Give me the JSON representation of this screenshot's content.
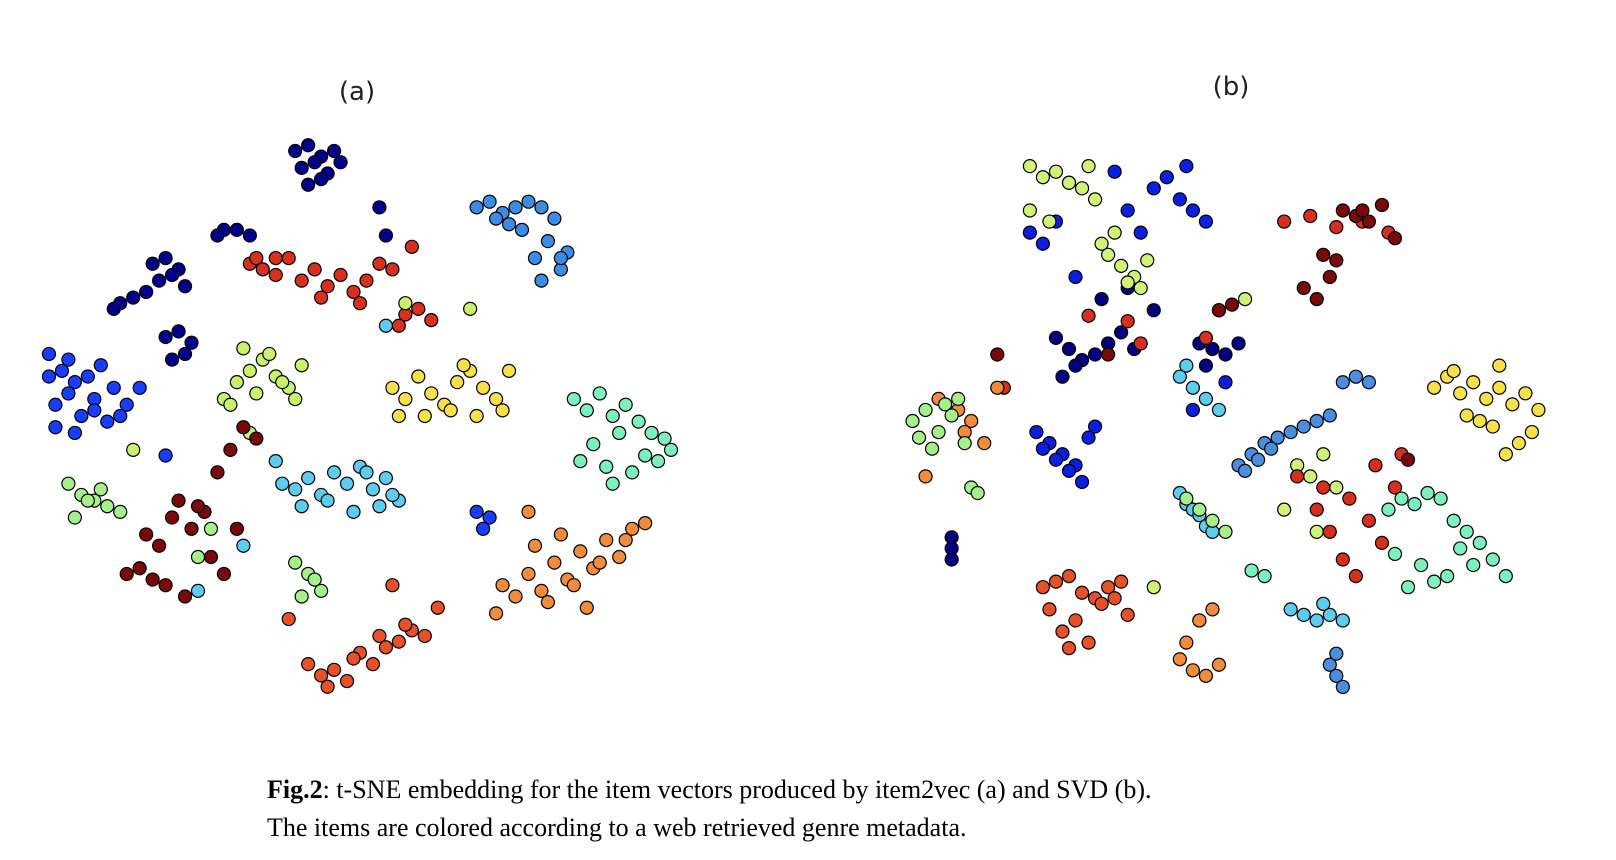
{
  "chart_data": [
    {
      "type": "scatter",
      "title": "(a)",
      "xlim": [
        0,
        100
      ],
      "ylim": [
        0,
        100
      ],
      "series": [
        {
          "color": "#00008b",
          "x": [
            40,
            42,
            44,
            46,
            41,
            43,
            45,
            47,
            44,
            42,
            18,
            20,
            22,
            19,
            21,
            23,
            20,
            22,
            24,
            21,
            23,
            15,
            13,
            17,
            12,
            29,
            31,
            33,
            28,
            54,
            53
          ],
          "y": [
            97,
            98,
            96,
            97,
            94,
            95,
            93,
            95,
            92,
            91,
            77,
            78,
            76,
            74,
            75,
            73,
            64,
            65,
            63,
            60,
            61,
            71,
            70,
            72,
            69,
            83,
            83,
            82,
            82,
            82,
            87
          ]
        },
        {
          "color": "#1a3cff",
          "x": [
            2,
            4,
            6,
            3,
            5,
            8,
            10,
            12,
            7,
            9,
            11,
            14,
            3,
            6,
            9,
            13,
            16,
            2,
            5,
            70,
            69,
            68,
            20
          ],
          "y": [
            61,
            58,
            56,
            52,
            54,
            57,
            59,
            55,
            50,
            53,
            49,
            52,
            48,
            47,
            51,
            50,
            55,
            57,
            60,
            32,
            30,
            33,
            43
          ]
        },
        {
          "color": "#3c8ce6",
          "x": [
            68,
            70,
            72,
            74,
            76,
            78,
            80,
            82,
            71,
            75,
            79,
            81,
            77,
            73,
            81,
            78
          ],
          "y": [
            87,
            88,
            86,
            87,
            88,
            87,
            85,
            79,
            85,
            83,
            81,
            76,
            78,
            84,
            78,
            74
          ]
        },
        {
          "color": "#d7301f",
          "x": [
            33,
            35,
            37,
            39,
            41,
            43,
            45,
            47,
            49,
            51,
            53,
            55,
            57,
            59,
            61,
            37,
            44,
            50,
            56,
            58,
            34
          ],
          "y": [
            77,
            76,
            75,
            78,
            74,
            76,
            73,
            75,
            72,
            74,
            77,
            76,
            68,
            69,
            67,
            78,
            71,
            70,
            66,
            80,
            78
          ]
        },
        {
          "color": "#f7e04a",
          "x": [
            55,
            57,
            59,
            61,
            63,
            65,
            67,
            69,
            71,
            73,
            60,
            64,
            68,
            72,
            56,
            66
          ],
          "y": [
            55,
            53,
            57,
            54,
            52,
            56,
            58,
            55,
            53,
            58,
            50,
            51,
            50,
            51,
            50,
            59
          ]
        },
        {
          "color": "#c9f26c",
          "x": [
            29,
            31,
            33,
            35,
            37,
            39,
            41,
            30,
            34,
            38,
            36,
            32,
            40,
            33,
            67,
            57,
            15
          ],
          "y": [
            53,
            56,
            58,
            60,
            57,
            55,
            59,
            52,
            54,
            56,
            61,
            62,
            53,
            47,
            69,
            70,
            44
          ]
        },
        {
          "color": "#7df0c0",
          "x": [
            83,
            85,
            87,
            89,
            91,
            93,
            95,
            97,
            86,
            90,
            94,
            98,
            84,
            88,
            92,
            96,
            89
          ],
          "y": [
            53,
            51,
            54,
            50,
            52,
            49,
            47,
            46,
            45,
            47,
            43,
            44,
            42,
            41,
            40,
            42,
            38
          ]
        },
        {
          "color": "#5ccdf0",
          "x": [
            38,
            40,
            42,
            44,
            46,
            48,
            50,
            52,
            54,
            56,
            41,
            45,
            49,
            53,
            55,
            51,
            37,
            32,
            54,
            25
          ],
          "y": [
            38,
            37,
            39,
            36,
            40,
            38,
            41,
            37,
            39,
            35,
            34,
            35,
            33,
            34,
            36,
            40,
            42,
            27,
            66,
            19
          ]
        },
        {
          "color": "#f08c3c",
          "x": [
            72,
            74,
            76,
            78,
            80,
            82,
            84,
            86,
            88,
            90,
            92,
            94,
            79,
            83,
            87,
            91,
            85,
            81,
            77,
            76,
            71
          ],
          "y": [
            20,
            18,
            22,
            19,
            24,
            21,
            26,
            23,
            28,
            25,
            30,
            31,
            17,
            20,
            24,
            28,
            16,
            29,
            27,
            33,
            15
          ]
        },
        {
          "color": "#e8502a",
          "x": [
            42,
            44,
            46,
            48,
            50,
            52,
            54,
            56,
            58,
            60,
            45,
            49,
            53,
            57,
            55,
            62,
            39
          ],
          "y": [
            6,
            4,
            5,
            3,
            8,
            6,
            9,
            10,
            12,
            11,
            2,
            7,
            11,
            13,
            20,
            16,
            14
          ]
        },
        {
          "color": "#7a0a0a",
          "x": [
            14,
            16,
            18,
            20,
            22,
            24,
            26,
            28,
            30,
            32,
            17,
            21,
            25,
            29,
            19,
            23,
            27,
            31,
            34
          ],
          "y": [
            22,
            23,
            21,
            20,
            35,
            30,
            33,
            40,
            44,
            48,
            29,
            32,
            34,
            22,
            27,
            18,
            25,
            30,
            46
          ]
        },
        {
          "color": "#a5f08a",
          "x": [
            5,
            7,
            9,
            11,
            13,
            6,
            8,
            10,
            40,
            42,
            44,
            41,
            43,
            27,
            25
          ],
          "y": [
            38,
            36,
            35,
            34,
            33,
            32,
            35,
            37,
            24,
            22,
            19,
            18,
            21,
            30,
            25
          ]
        }
      ]
    },
    {
      "type": "scatter",
      "title": "(b)",
      "xlim": [
        0,
        100
      ],
      "ylim": [
        0,
        100
      ],
      "series": [
        {
          "color": "#000080",
          "x": [
            23,
            25,
            27,
            29,
            31,
            33,
            35,
            24,
            26,
            45,
            47,
            49,
            51,
            46,
            7,
            7,
            7,
            30,
            34,
            38,
            25
          ],
          "y": [
            65,
            63,
            61,
            62,
            64,
            66,
            63,
            58,
            60,
            64,
            63,
            62,
            64,
            60,
            29,
            27,
            25,
            72,
            74,
            70,
            93
          ]
        },
        {
          "color": "#0a1fe0",
          "x": [
            20,
            22,
            24,
            26,
            28,
            21,
            23,
            25,
            27,
            29,
            38,
            40,
            42,
            44,
            46,
            32,
            34,
            36,
            43,
            19,
            21,
            23,
            26,
            49,
            44
          ],
          "y": [
            48,
            46,
            44,
            42,
            47,
            45,
            43,
            41,
            39,
            49,
            92,
            94,
            90,
            88,
            86,
            95,
            88,
            84,
            96,
            84,
            82,
            86,
            76,
            57,
            52
          ]
        },
        {
          "color": "#cff277",
          "x": [
            19,
            21,
            23,
            25,
            27,
            29,
            31,
            33,
            35,
            37,
            30,
            32,
            34,
            36,
            19,
            22,
            28,
            60,
            62,
            64,
            66,
            58,
            63,
            38,
            45,
            52
          ],
          "y": [
            96,
            94,
            95,
            93,
            92,
            90,
            80,
            78,
            76,
            79,
            82,
            84,
            75,
            74,
            88,
            86,
            96,
            42,
            40,
            44,
            38,
            34,
            30,
            20,
            14,
            72
          ]
        },
        {
          "color": "#d72f1f",
          "x": [
            58,
            62,
            66,
            70,
            74,
            60,
            64,
            68,
            72,
            76,
            65,
            71,
            67,
            73,
            63,
            69,
            75,
            36,
            28,
            34,
            15,
            46,
            48
          ],
          "y": [
            86,
            87,
            85,
            86,
            84,
            40,
            38,
            36,
            42,
            44,
            30,
            32,
            25,
            28,
            34,
            22,
            38,
            64,
            69,
            68,
            56,
            65,
            70
          ]
        },
        {
          "color": "#7a0a0a",
          "x": [
            61,
            63,
            65,
            67,
            69,
            71,
            73,
            75,
            77,
            64,
            66,
            70,
            31,
            14,
            48,
            50
          ],
          "y": [
            74,
            72,
            76,
            88,
            87,
            86,
            89,
            83,
            43,
            80,
            79,
            88,
            62,
            62,
            70,
            71
          ]
        },
        {
          "color": "#f7e04a",
          "x": [
            81,
            83,
            85,
            87,
            89,
            91,
            93,
            95,
            97,
            86,
            90,
            94,
            92,
            96,
            88,
            84,
            91
          ],
          "y": [
            56,
            58,
            55,
            57,
            54,
            56,
            53,
            55,
            52,
            51,
            49,
            46,
            44,
            48,
            50,
            59,
            60
          ]
        },
        {
          "color": "#4a8ee0",
          "x": [
            51,
            53,
            55,
            57,
            59,
            61,
            63,
            65,
            52,
            54,
            56,
            67,
            69,
            71,
            65,
            66,
            67,
            66
          ],
          "y": [
            42,
            44,
            46,
            47,
            48,
            49,
            50,
            51,
            41,
            43,
            45,
            57,
            58,
            57,
            6,
            4,
            2,
            8
          ]
        },
        {
          "color": "#5ccdf0",
          "x": [
            42,
            43,
            44,
            45,
            46,
            47,
            42,
            44,
            46,
            48,
            43,
            59,
            61,
            63,
            65,
            67,
            64
          ],
          "y": [
            37,
            35,
            34,
            33,
            31,
            30,
            58,
            56,
            54,
            52,
            60,
            16,
            15,
            14,
            15,
            14,
            17
          ]
        },
        {
          "color": "#e8502a",
          "x": [
            21,
            23,
            25,
            27,
            29,
            31,
            33,
            22,
            26,
            30,
            34,
            24,
            28,
            32,
            25
          ],
          "y": [
            20,
            21,
            22,
            19,
            18,
            20,
            21,
            16,
            14,
            17,
            15,
            12,
            10,
            18,
            9
          ]
        },
        {
          "color": "#f08c3c",
          "x": [
            42,
            44,
            46,
            48,
            47,
            45,
            43,
            5,
            8,
            10,
            12,
            9,
            3,
            14
          ],
          "y": [
            7,
            5,
            4,
            6,
            16,
            14,
            10,
            54,
            52,
            50,
            46,
            48,
            40,
            56
          ]
        },
        {
          "color": "#a5f08a",
          "x": [
            1,
            3,
            5,
            7,
            9,
            2,
            4,
            6,
            8,
            43,
            45,
            47,
            49,
            10,
            11
          ],
          "y": [
            50,
            52,
            48,
            51,
            46,
            47,
            45,
            53,
            54,
            36,
            34,
            32,
            30,
            38,
            37
          ]
        },
        {
          "color": "#7df0c0",
          "x": [
            74,
            76,
            78,
            80,
            82,
            84,
            86,
            88,
            90,
            92,
            75,
            79,
            83,
            87,
            77,
            81,
            85,
            53,
            55
          ],
          "y": [
            34,
            36,
            35,
            37,
            36,
            32,
            30,
            28,
            25,
            22,
            26,
            24,
            22,
            24,
            20,
            21,
            27,
            23,
            22
          ]
        }
      ]
    }
  ],
  "caption": {
    "label": "Fig.2",
    "line1": ": t-SNE embedding for the item vectors produced by item2vec (a) and SVD (b).",
    "line2": "The items are colored according to a web retrieved genre metadata."
  }
}
